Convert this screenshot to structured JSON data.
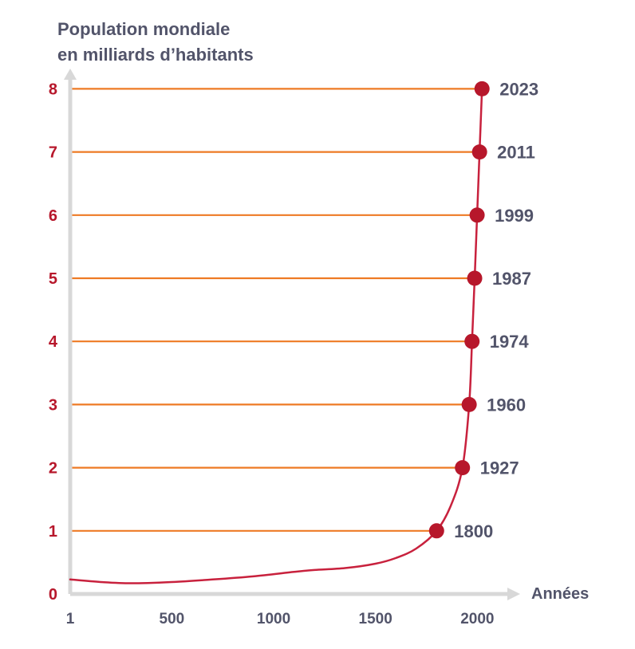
{
  "chart_data": {
    "type": "line",
    "ylabel_line1": "Population mondiale",
    "ylabel_line2": "en milliards d’habitants",
    "xlabel": "Années",
    "xlim": [
      1,
      2050
    ],
    "ylim": [
      0,
      8
    ],
    "x_ticks": [
      {
        "value": 1,
        "label": "1"
      },
      {
        "value": 500,
        "label": "500"
      },
      {
        "value": 1000,
        "label": "1000"
      },
      {
        "value": 1500,
        "label": "1500"
      },
      {
        "value": 2000,
        "label": "2000"
      }
    ],
    "y_ticks": [
      {
        "value": 0,
        "label": "0"
      },
      {
        "value": 1,
        "label": "1"
      },
      {
        "value": 2,
        "label": "2"
      },
      {
        "value": 3,
        "label": "3"
      },
      {
        "value": 4,
        "label": "4"
      },
      {
        "value": 5,
        "label": "5"
      },
      {
        "value": 6,
        "label": "6"
      },
      {
        "value": 7,
        "label": "7"
      },
      {
        "value": 8,
        "label": "8"
      }
    ],
    "milestones": [
      {
        "year": 1800,
        "population": 1,
        "label": "1800"
      },
      {
        "year": 1927,
        "population": 2,
        "label": "1927"
      },
      {
        "year": 1960,
        "population": 3,
        "label": "1960"
      },
      {
        "year": 1974,
        "population": 4,
        "label": "1974"
      },
      {
        "year": 1987,
        "population": 5,
        "label": "1987"
      },
      {
        "year": 1999,
        "population": 6,
        "label": "1999"
      },
      {
        "year": 2011,
        "population": 7,
        "label": "2011"
      },
      {
        "year": 2023,
        "population": 8,
        "label": "2023"
      }
    ],
    "curve": [
      {
        "x": 1,
        "y": 0.23
      },
      {
        "x": 150,
        "y": 0.19
      },
      {
        "x": 300,
        "y": 0.17
      },
      {
        "x": 500,
        "y": 0.19
      },
      {
        "x": 700,
        "y": 0.23
      },
      {
        "x": 900,
        "y": 0.28
      },
      {
        "x": 1100,
        "y": 0.35
      },
      {
        "x": 1200,
        "y": 0.38
      },
      {
        "x": 1350,
        "y": 0.41
      },
      {
        "x": 1500,
        "y": 0.48
      },
      {
        "x": 1600,
        "y": 0.57
      },
      {
        "x": 1700,
        "y": 0.72
      },
      {
        "x": 1800,
        "y": 1.0
      },
      {
        "x": 1870,
        "y": 1.4
      },
      {
        "x": 1927,
        "y": 2.0
      },
      {
        "x": 1960,
        "y": 3.0
      },
      {
        "x": 1974,
        "y": 4.0
      },
      {
        "x": 1987,
        "y": 5.0
      },
      {
        "x": 1999,
        "y": 6.0
      },
      {
        "x": 2011,
        "y": 7.0
      },
      {
        "x": 2023,
        "y": 8.0
      }
    ],
    "colors": {
      "curve": "#c8213d",
      "points": "#b7172b",
      "guides": "#ee7a24",
      "axis": "#d8d8d8",
      "ytick_text": "#b7172b",
      "text": "#52546a"
    }
  }
}
